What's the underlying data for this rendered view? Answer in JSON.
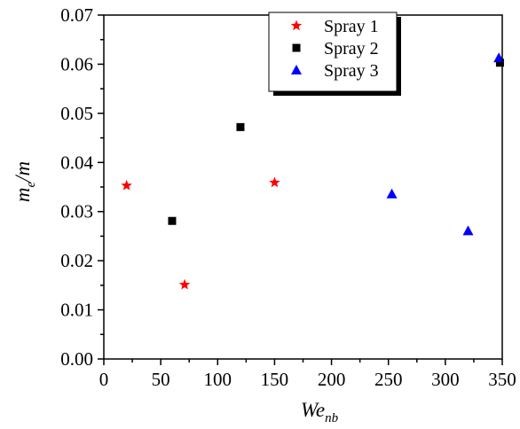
{
  "chart_data": {
    "type": "scatter",
    "xlabel": {
      "main": "We",
      "sub": "nb"
    },
    "ylabel": {
      "main": "m",
      "sub": "e",
      "rest": "/m"
    },
    "xlim": [
      0,
      350
    ],
    "ylim": [
      0,
      0.07
    ],
    "xticks": [
      "0",
      "50",
      "100",
      "150",
      "200",
      "250",
      "300",
      "350"
    ],
    "yticks": [
      "0.00",
      "0.01",
      "0.02",
      "0.03",
      "0.04",
      "0.05",
      "0.06",
      "0.07"
    ],
    "legend_position": "top-right",
    "series": [
      {
        "name": "Spray 1",
        "marker": "star",
        "color": "#ff0000",
        "points": [
          [
            20,
            0.0353
          ],
          [
            71,
            0.0151
          ],
          [
            150,
            0.0359
          ]
        ]
      },
      {
        "name": "Spray 2",
        "marker": "square",
        "color": "#000000",
        "points": [
          [
            60,
            0.0281
          ],
          [
            120,
            0.0472
          ],
          [
            348,
            0.0603
          ]
        ]
      },
      {
        "name": "Spray 3",
        "marker": "triangle",
        "color": "#0000ff",
        "points": [
          [
            253,
            0.0336
          ],
          [
            320,
            0.0261
          ],
          [
            347,
            0.0613
          ]
        ]
      }
    ]
  }
}
